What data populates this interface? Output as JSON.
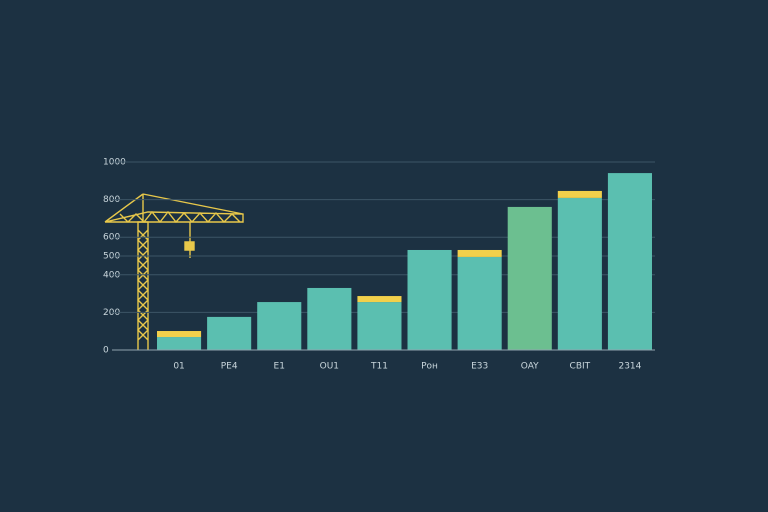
{
  "chart_data": {
    "type": "bar",
    "categories": [
      "01",
      "PE4",
      "E1",
      "OU1",
      "T11",
      "Pон",
      "E33",
      "OAY",
      "CBIT",
      "2314"
    ],
    "series": [
      {
        "color": "#5bbfb0",
        "colors": [
          "#5bbfb0",
          "#5bbfb0",
          "#5bbfb0",
          "#5bbfb0",
          "#5bbfb0",
          "#5bbfb0",
          "#5bbfb0",
          "#6cbf90",
          "#5bbfb0",
          "#5bbfb0"
        ],
        "values": [
          69,
          176,
          255,
          330,
          255,
          532,
          495,
          761,
          809,
          941
        ]
      },
      {
        "color": "#f2d04b",
        "values": [
          32,
          null,
          null,
          null,
          32,
          null,
          37,
          null,
          37,
          null
        ]
      }
    ],
    "ylim": [
      0,
      1000
    ],
    "yticks": [
      0,
      200,
      400,
      500,
      600,
      800,
      1000
    ],
    "grid": true
  }
}
